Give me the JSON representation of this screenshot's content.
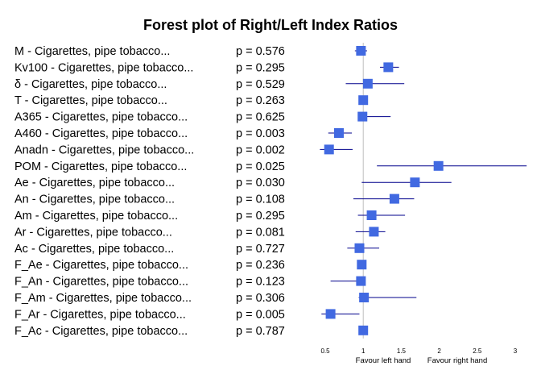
{
  "chart_data": {
    "type": "forest",
    "title": "Forest plot of Right/Left Index Ratios",
    "reference_line": 1,
    "xlim": [
      0.5,
      3
    ],
    "xticks": [
      "0.5",
      "1",
      "1.5",
      "2",
      "2.5",
      "3"
    ],
    "favour_left": "Favour left hand",
    "favour_right": "Favour right hand",
    "colors": {
      "marker": "#4169e1",
      "ci": "#00008b",
      "reference": "#bebebe"
    },
    "rows": [
      {
        "label": "M - Cigarettes, pipe tobacco...",
        "p": "p = 0.576",
        "est": 0.97,
        "lo": 0.89,
        "hi": 1.05
      },
      {
        "label": "Kv100 - Cigarettes, pipe tobacco...",
        "p": "p = 0.295",
        "est": 1.33,
        "lo": 1.22,
        "hi": 1.47
      },
      {
        "label": "δ - Cigarettes, pipe tobacco...",
        "p": "p = 0.529",
        "est": 1.06,
        "lo": 0.77,
        "hi": 1.54
      },
      {
        "label": "T - Cigarettes, pipe tobacco...",
        "p": "p = 0.263",
        "est": 1.0,
        "lo": 0.98,
        "hi": 1.02
      },
      {
        "label": "A365 - Cigarettes, pipe tobacco...",
        "p": "p = 0.625",
        "est": 0.99,
        "lo": 0.93,
        "hi": 1.36
      },
      {
        "label": "A460 - Cigarettes, pipe tobacco...",
        "p": "p = 0.003",
        "est": 0.68,
        "lo": 0.54,
        "hi": 0.85
      },
      {
        "label": "Anadn - Cigarettes, pipe tobacco...",
        "p": "p = 0.002",
        "est": 0.55,
        "lo": 0.43,
        "hi": 0.86
      },
      {
        "label": "POM - Cigarettes, pipe tobacco...",
        "p": "p = 0.025",
        "est": 1.99,
        "lo": 1.18,
        "hi": 3.15
      },
      {
        "label": "Ae - Cigarettes, pipe tobacco...",
        "p": "p = 0.030",
        "est": 1.68,
        "lo": 0.98,
        "hi": 2.16
      },
      {
        "label": "An - Cigarettes, pipe tobacco...",
        "p": "p = 0.108",
        "est": 1.41,
        "lo": 0.87,
        "hi": 1.67
      },
      {
        "label": "Am - Cigarettes, pipe tobacco...",
        "p": "p = 0.295",
        "est": 1.11,
        "lo": 0.93,
        "hi": 1.55
      },
      {
        "label": "Ar - Cigarettes, pipe tobacco...",
        "p": "p = 0.081",
        "est": 1.14,
        "lo": 0.9,
        "hi": 1.29
      },
      {
        "label": "Ac - Cigarettes, pipe tobacco...",
        "p": "p = 0.727",
        "est": 0.95,
        "lo": 0.79,
        "hi": 1.21
      },
      {
        "label": "F_Ae - Cigarettes, pipe tobacco...",
        "p": "p = 0.236",
        "est": 0.98,
        "lo": 0.94,
        "hi": 1.02
      },
      {
        "label": "F_An - Cigarettes, pipe tobacco...",
        "p": "p = 0.123",
        "est": 0.97,
        "lo": 0.57,
        "hi": 1.0
      },
      {
        "label": "F_Am - Cigarettes, pipe tobacco...",
        "p": "p = 0.306",
        "est": 1.01,
        "lo": 0.94,
        "hi": 1.7
      },
      {
        "label": "F_Ar - Cigarettes, pipe tobacco...",
        "p": "p = 0.005",
        "est": 0.57,
        "lo": 0.45,
        "hi": 0.95
      },
      {
        "label": "F_Ac - Cigarettes, pipe tobacco...",
        "p": "p = 0.787",
        "est": 1.0,
        "lo": 1.0,
        "hi": 1.0
      }
    ]
  }
}
